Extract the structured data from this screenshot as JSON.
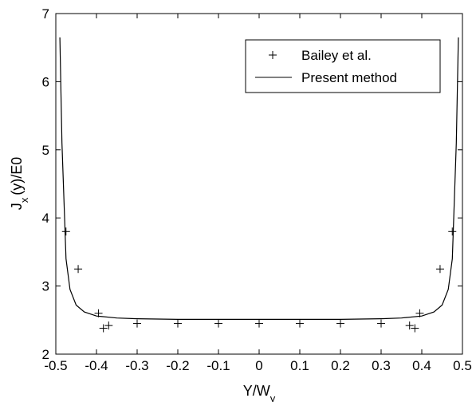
{
  "chart_data": {
    "type": "line",
    "title": "",
    "xlabel": {
      "main": "Y/W",
      "sub": "y"
    },
    "ylabel": {
      "main": "J",
      "sub": "x",
      "rest": "(y)/E0"
    },
    "xlim": [
      -0.5,
      0.5
    ],
    "ylim": [
      2,
      7
    ],
    "x_ticks": [
      -0.5,
      -0.4,
      -0.3,
      -0.2,
      -0.1,
      0,
      0.1,
      0.2,
      0.3,
      0.4,
      0.5
    ],
    "x_tick_labels": [
      "-0.5",
      "-0.4",
      "-0.3",
      "-0.2",
      "-0.1",
      "0",
      "0.1",
      "0.2",
      "0.3",
      "0.4",
      "0.5"
    ],
    "y_ticks": [
      2,
      3,
      4,
      5,
      6,
      7
    ],
    "y_tick_labels": [
      "2",
      "3",
      "4",
      "5",
      "6",
      "7"
    ],
    "grid": false,
    "legend_position": "top-right",
    "series": [
      {
        "name": "Bailey et al.",
        "style": "marker-plus",
        "color": "#000000",
        "points": [
          [
            -0.475,
            3.8
          ],
          [
            -0.445,
            3.25
          ],
          [
            -0.395,
            2.6
          ],
          [
            -0.383,
            2.38
          ],
          [
            -0.37,
            2.42
          ],
          [
            -0.3,
            2.45
          ],
          [
            -0.2,
            2.45
          ],
          [
            -0.1,
            2.45
          ],
          [
            0,
            2.45
          ],
          [
            0.1,
            2.45
          ],
          [
            0.2,
            2.45
          ],
          [
            0.3,
            2.45
          ],
          [
            0.37,
            2.42
          ],
          [
            0.383,
            2.38
          ],
          [
            0.395,
            2.6
          ],
          [
            0.445,
            3.25
          ],
          [
            0.475,
            3.8
          ]
        ]
      },
      {
        "name": "Present method",
        "style": "line",
        "color": "#000000",
        "points": [
          [
            -0.49,
            6.65
          ],
          [
            -0.485,
            5.1
          ],
          [
            -0.475,
            3.4
          ],
          [
            -0.465,
            2.95
          ],
          [
            -0.45,
            2.72
          ],
          [
            -0.43,
            2.62
          ],
          [
            -0.4,
            2.56
          ],
          [
            -0.35,
            2.53
          ],
          [
            -0.3,
            2.52
          ],
          [
            -0.2,
            2.51
          ],
          [
            -0.1,
            2.51
          ],
          [
            0,
            2.51
          ],
          [
            0.1,
            2.51
          ],
          [
            0.2,
            2.51
          ],
          [
            0.3,
            2.52
          ],
          [
            0.35,
            2.53
          ],
          [
            0.4,
            2.56
          ],
          [
            0.43,
            2.62
          ],
          [
            0.45,
            2.72
          ],
          [
            0.465,
            2.95
          ],
          [
            0.475,
            3.4
          ],
          [
            0.485,
            5.1
          ],
          [
            0.49,
            6.65
          ]
        ]
      }
    ]
  }
}
